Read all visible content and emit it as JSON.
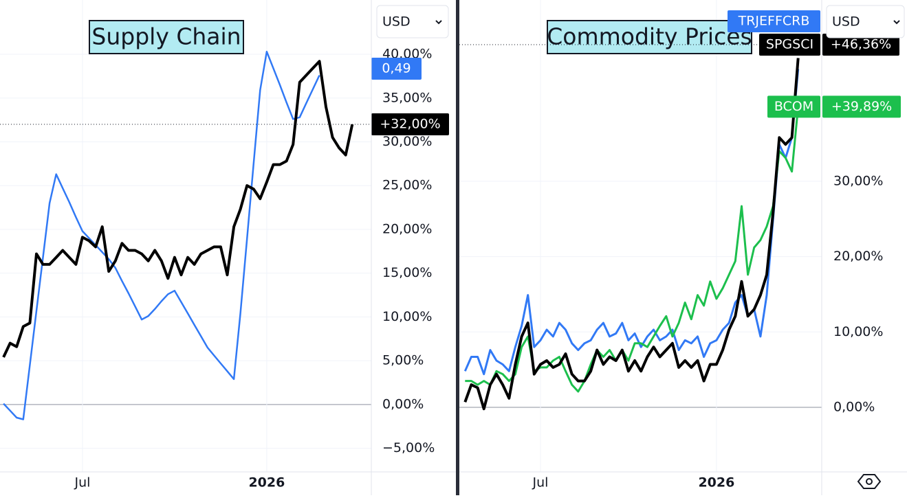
{
  "chart_data": [
    {
      "type": "line",
      "title": "Supply Chain",
      "currency": "USD",
      "categories": [
        null,
        null,
        null,
        null,
        null,
        null,
        null,
        null,
        null,
        null,
        null,
        null,
        "Jul",
        null,
        null,
        null,
        null,
        null,
        null,
        null,
        null,
        null,
        null,
        null,
        null,
        null,
        null,
        null,
        null,
        null,
        null,
        null,
        null,
        null,
        null,
        null,
        null,
        null,
        null,
        null,
        "2026",
        null,
        null,
        null,
        null,
        null,
        null,
        null,
        null,
        null,
        null,
        null,
        null,
        null
      ],
      "ylim": [
        -7.7,
        46.2
      ],
      "yticks": [
        {
          "value": -5,
          "label": "−5,00%"
        },
        {
          "value": 0,
          "label": "0,00%"
        },
        {
          "value": 5,
          "label": "5,00%"
        },
        {
          "value": 10,
          "label": "10,00%"
        },
        {
          "value": 15,
          "label": "15,00%"
        },
        {
          "value": 20,
          "label": "20,00%"
        },
        {
          "value": 25,
          "label": "25,00%"
        },
        {
          "value": 30,
          "label": "30,00%"
        },
        {
          "value": 35,
          "label": "35,00%"
        },
        {
          "value": 40,
          "label": "40,00%"
        }
      ],
      "grid": true,
      "series": [
        {
          "color": "#3179f5",
          "label": "0,49",
          "values": [
            0.1,
            -0.7,
            -1.5,
            -1.7,
            4.5,
            10.7,
            16.8,
            23.0,
            26.3,
            24.7,
            23.1,
            21.4,
            19.8,
            19.0,
            18.2,
            17.4,
            16.6,
            15.6,
            14.1,
            12.7,
            11.2,
            9.7,
            10.1,
            10.9,
            11.8,
            12.6,
            13.0,
            11.7,
            10.4,
            9.1,
            7.8,
            6.5,
            5.6,
            4.7,
            3.8,
            2.9,
            10.4,
            18.9,
            27.5,
            35.9,
            40.3,
            38.4,
            36.5,
            34.5,
            32.6,
            32.8,
            34.4,
            36.0,
            37.6,
            null,
            null,
            null,
            null,
            null
          ]
        },
        {
          "color": "#000000",
          "last_label": "+32,00%",
          "values": [
            5.4,
            7.0,
            6.6,
            8.9,
            9.3,
            17.2,
            16.0,
            16.0,
            16.8,
            17.6,
            16.8,
            16.0,
            19.1,
            18.7,
            18.0,
            20.3,
            15.2,
            16.4,
            18.4,
            17.6,
            17.6,
            17.2,
            16.4,
            17.6,
            16.4,
            14.4,
            16.8,
            14.8,
            16.8,
            16.0,
            17.2,
            17.6,
            18.0,
            18.0,
            14.8,
            20.3,
            22.3,
            25.0,
            24.6,
            23.5,
            25.4,
            27.4,
            27.4,
            27.8,
            29.7,
            36.8,
            37.6,
            38.4,
            39.2,
            34.0,
            30.5,
            29.3,
            28.5,
            32.0
          ]
        }
      ]
    },
    {
      "type": "line",
      "title": "Commodity Prices",
      "currency": "USD",
      "categories": [
        null,
        null,
        null,
        null,
        null,
        null,
        null,
        null,
        null,
        null,
        null,
        null,
        "Jul",
        null,
        null,
        null,
        null,
        null,
        null,
        null,
        null,
        null,
        null,
        null,
        null,
        null,
        null,
        null,
        null,
        null,
        null,
        null,
        null,
        null,
        null,
        null,
        null,
        null,
        null,
        null,
        "2026",
        null,
        null,
        null,
        null,
        null,
        null,
        null,
        null,
        null,
        null,
        null,
        null,
        null
      ],
      "ylim": [
        -8.57,
        54.06
      ],
      "yticks": [
        {
          "value": 0,
          "label": "0,00%"
        },
        {
          "value": 10,
          "label": "10,00%"
        },
        {
          "value": 20,
          "label": "20,00%"
        },
        {
          "value": 30,
          "label": "30,00%"
        }
      ],
      "grid": true,
      "series": [
        {
          "name": "TRJEFFCRB",
          "color": "#3179f5",
          "values": [
            4.8,
            6.7,
            6.7,
            4.4,
            7.6,
            6.2,
            5.7,
            4.8,
            8.0,
            10.8,
            14.9,
            8.0,
            8.9,
            10.3,
            9.4,
            11.2,
            10.3,
            8.5,
            7.6,
            8.5,
            8.9,
            10.3,
            11.2,
            9.4,
            9.8,
            11.2,
            8.9,
            9.8,
            8.0,
            9.4,
            10.3,
            8.9,
            9.4,
            10.3,
            7.6,
            8.9,
            8.5,
            9.4,
            6.7,
            8.5,
            8.9,
            10.3,
            11.2,
            13.9,
            14.9,
            12.1,
            13.0,
            9.4,
            14.9,
            24.9,
            34.9,
            33.1,
            35.8,
            44.9
          ]
        },
        {
          "name": "SPGSCI",
          "color": "#000000",
          "last_label": "+46,36%",
          "values": [
            0.7,
            3.0,
            2.6,
            -0.2,
            3.0,
            4.4,
            3.0,
            1.2,
            5.7,
            9.4,
            11.2,
            4.4,
            5.7,
            6.2,
            5.3,
            5.7,
            7.1,
            4.4,
            3.5,
            3.5,
            4.8,
            7.6,
            5.7,
            6.7,
            6.2,
            7.6,
            4.8,
            6.2,
            4.8,
            6.7,
            8.0,
            6.7,
            7.6,
            8.5,
            5.3,
            6.2,
            5.3,
            6.2,
            3.5,
            5.7,
            5.7,
            7.6,
            10.3,
            12.1,
            16.7,
            12.1,
            13.0,
            14.9,
            17.6,
            25.8,
            35.8,
            34.9,
            35.8,
            46.36
          ]
        },
        {
          "name": "BCOM",
          "color": "#1cbf4d",
          "last_label": "+39,89%",
          "values": [
            3.5,
            3.5,
            3.0,
            3.5,
            3.0,
            4.8,
            4.4,
            3.5,
            4.4,
            8.0,
            9.4,
            4.8,
            5.3,
            5.3,
            6.2,
            6.7,
            4.8,
            3.0,
            2.1,
            3.5,
            5.7,
            7.6,
            6.7,
            7.6,
            6.2,
            7.6,
            6.2,
            8.5,
            8.5,
            8.0,
            9.4,
            10.8,
            12.1,
            9.4,
            11.2,
            13.9,
            11.7,
            14.9,
            13.5,
            16.7,
            14.4,
            15.8,
            17.6,
            19.4,
            26.7,
            17.6,
            21.2,
            22.2,
            24.0,
            26.7,
            34.0,
            33.1,
            31.3,
            39.89
          ]
        }
      ]
    }
  ]
}
